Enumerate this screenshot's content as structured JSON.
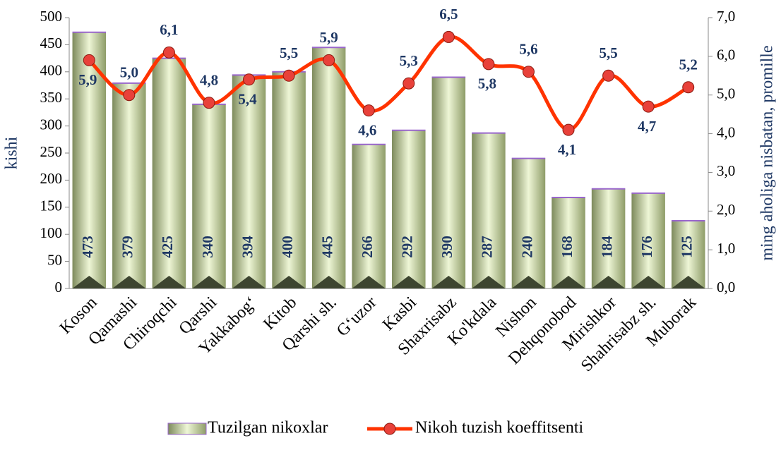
{
  "chart_data": {
    "type": "bar-line",
    "categories": [
      "Koson",
      "Qamashi",
      "Chiroqchi",
      "Qarshi",
      "Yakkabog‘",
      "Kitob",
      "Qarshi sh.",
      "G‘uzor",
      "Kasbi",
      "Shaxrisabz",
      "Ko'kdala",
      "Nishon",
      "Dehqonobod",
      "Mirishkor",
      "Shahrisabz sh.",
      "Muborak"
    ],
    "series": [
      {
        "name": "Tuzilgan nikoxlar",
        "type": "bar",
        "color": "#c9dba0",
        "values": [
          473,
          379,
          425,
          340,
          394,
          400,
          445,
          266,
          292,
          390,
          287,
          240,
          168,
          184,
          176,
          125
        ]
      },
      {
        "name": "Nikoh tuzish koeffitsenti",
        "type": "line",
        "axis": "y2",
        "color": "#ff3300",
        "values": [
          5.9,
          5.0,
          6.1,
          4.8,
          5.4,
          5.5,
          5.9,
          4.6,
          5.3,
          6.5,
          5.8,
          5.6,
          4.1,
          5.5,
          4.7,
          5.2
        ],
        "value_labels": [
          "5,9",
          "5,0",
          "6,1",
          "4,8",
          "5,4",
          "5,5",
          "5,9",
          "4,6",
          "5,3",
          "6,5",
          "5,8",
          "5,6",
          "4,1",
          "5,5",
          "4,7",
          "5,2"
        ]
      }
    ],
    "ylabel": "kishi",
    "y2label": "ming aholiga nisbatan, promille",
    "ylim": [
      0,
      500
    ],
    "yticks": [
      0,
      50,
      100,
      150,
      200,
      250,
      300,
      350,
      400,
      450,
      500
    ],
    "y2lim": [
      0,
      7
    ],
    "y2ticks": [
      {
        "value": 0,
        "label": "0,0"
      },
      {
        "value": 1,
        "label": "1,0"
      },
      {
        "value": 2,
        "label": "2,0"
      },
      {
        "value": 3,
        "label": "3,0"
      },
      {
        "value": 4,
        "label": "4,0"
      },
      {
        "value": 5,
        "label": "5,0"
      },
      {
        "value": 6,
        "label": "6,0"
      },
      {
        "value": 7,
        "label": "7,0"
      }
    ],
    "legend": "bottom"
  }
}
